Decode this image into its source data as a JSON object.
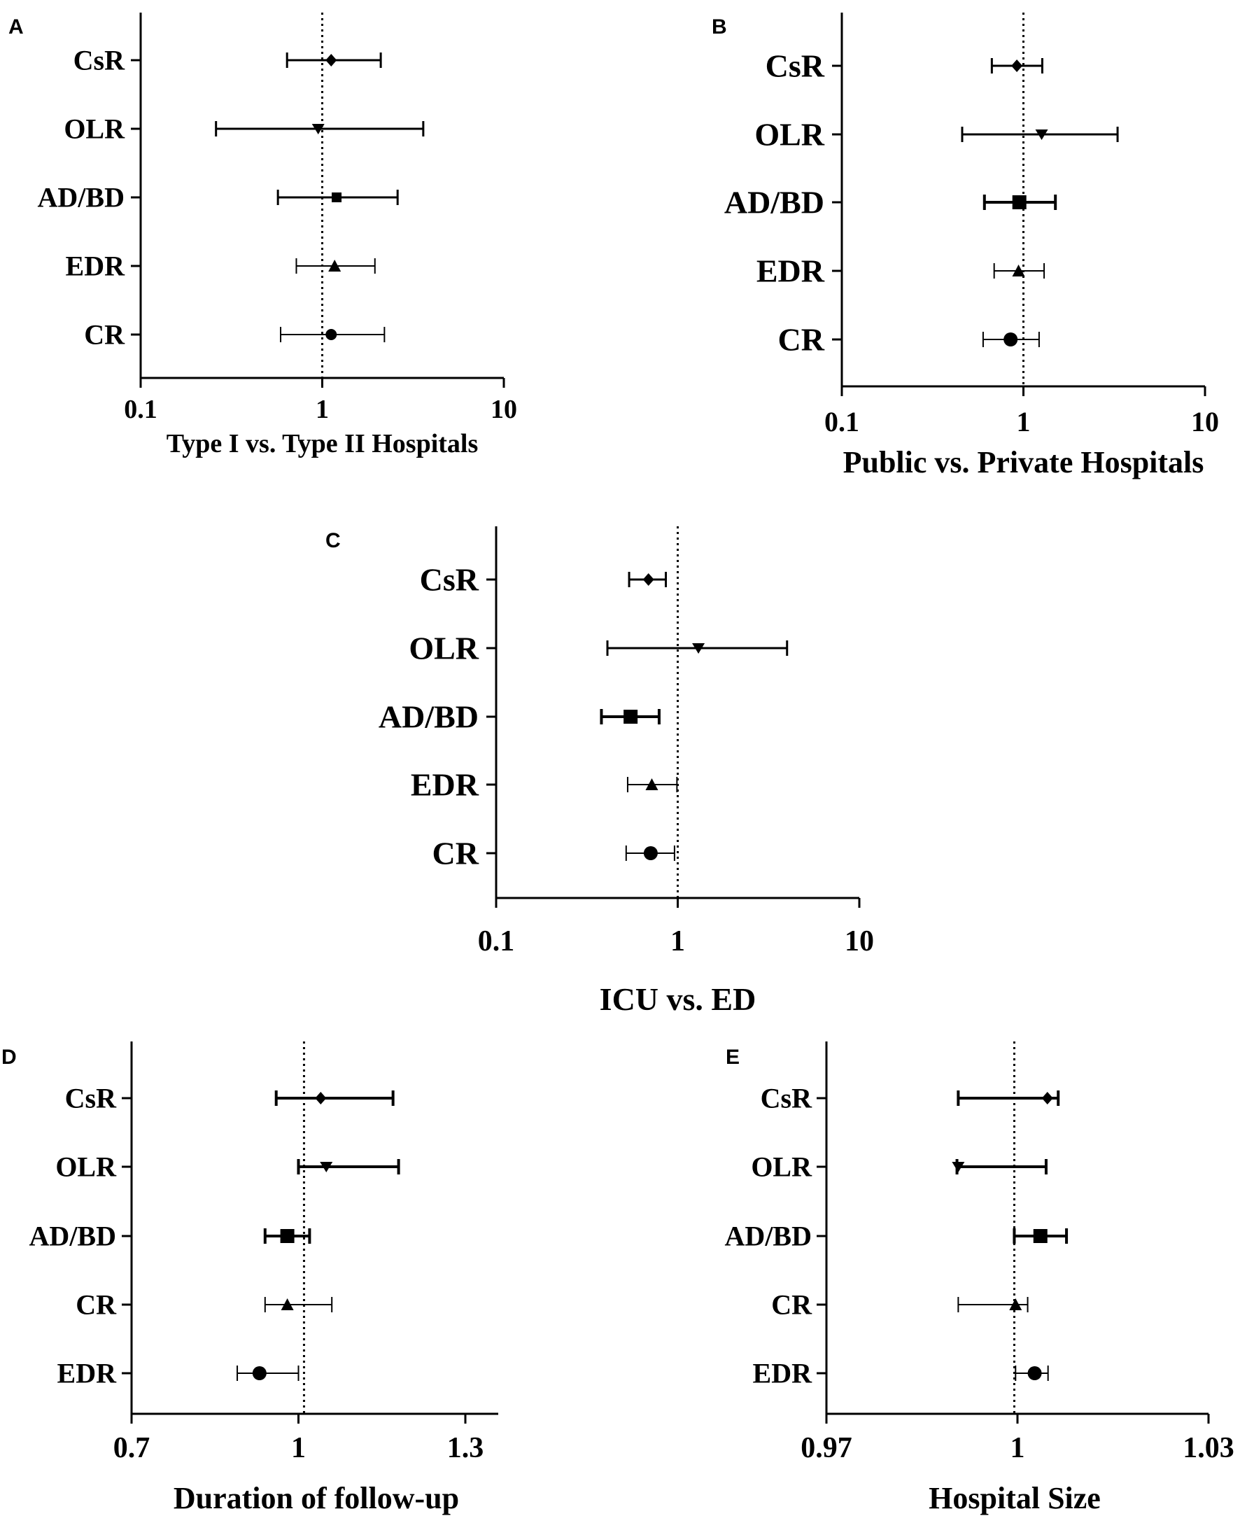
{
  "chart_data": [
    {
      "type": "forest",
      "panel_label": "A",
      "xlabel": "Type I vs. Type II Hospitals",
      "xscale": "log",
      "xlim": [
        0.1,
        10
      ],
      "ref_line": 1,
      "x_ticks": [
        "0.1",
        "1",
        "10"
      ],
      "categories": [
        "CsR",
        "OLR",
        "AD/BD",
        "EDR",
        "CR"
      ],
      "markers": [
        "diamond",
        "triangle-down",
        "square",
        "triangle-up",
        "circle"
      ],
      "estimates": [
        1.12,
        0.95,
        1.2,
        1.17,
        1.12
      ],
      "ci_low": [
        0.64,
        0.26,
        0.57,
        0.72,
        0.59
      ],
      "ci_high": [
        2.1,
        3.6,
        2.6,
        1.95,
        2.2
      ],
      "ci_weights": [
        3,
        3,
        3,
        2,
        2
      ]
    },
    {
      "type": "forest",
      "panel_label": "B",
      "xlabel": "Public vs. Private Hospitals",
      "xscale": "log",
      "xlim": [
        0.1,
        10
      ],
      "ref_line": 1,
      "x_ticks": [
        "0.1",
        "1",
        "10"
      ],
      "categories": [
        "CsR",
        "OLR",
        "AD/BD",
        "EDR",
        "CR"
      ],
      "markers": [
        "diamond",
        "triangle-down",
        "square",
        "triangle-up",
        "circle"
      ],
      "estimates": [
        0.92,
        1.26,
        0.95,
        0.94,
        0.85
      ],
      "ci_low": [
        0.67,
        0.46,
        0.61,
        0.69,
        0.6
      ],
      "ci_high": [
        1.27,
        3.3,
        1.5,
        1.3,
        1.22
      ],
      "ci_weights": [
        3,
        3,
        4,
        2,
        2
      ]
    },
    {
      "type": "forest",
      "panel_label": "C",
      "xlabel": "ICU vs. ED",
      "xscale": "log",
      "xlim": [
        0.1,
        10
      ],
      "ref_line": 1,
      "x_ticks": [
        "0.1",
        "1",
        "10"
      ],
      "categories": [
        "CsR",
        "OLR",
        "AD/BD",
        "EDR",
        "CR"
      ],
      "markers": [
        "diamond",
        "triangle-down",
        "square",
        "triangle-up",
        "circle"
      ],
      "estimates": [
        0.69,
        1.3,
        0.55,
        0.72,
        0.71
      ],
      "ci_low": [
        0.54,
        0.41,
        0.38,
        0.53,
        0.52
      ],
      "ci_high": [
        0.86,
        4.0,
        0.79,
        0.99,
        0.96
      ],
      "ci_weights": [
        3,
        3,
        4,
        2,
        2
      ]
    },
    {
      "type": "forest",
      "panel_label": "D",
      "xlabel": "Duration of follow-up",
      "xscale": "linear",
      "xlim": [
        0.7,
        1.3
      ],
      "ref_line": 1.01,
      "x_ticks": [
        "0.7",
        "1",
        "1.3"
      ],
      "categories": [
        "CsR",
        "OLR",
        "AD/BD",
        "CR",
        "EDR"
      ],
      "markers": [
        "diamond",
        "triangle-down",
        "square",
        "triangle-up",
        "circle"
      ],
      "estimates": [
        1.04,
        1.05,
        0.98,
        0.98,
        0.93
      ],
      "ci_low": [
        0.96,
        1.0,
        0.94,
        0.94,
        0.89
      ],
      "ci_high": [
        1.17,
        1.18,
        1.02,
        1.06,
        1.0
      ],
      "ci_weights": [
        4,
        4,
        4,
        2,
        2
      ]
    },
    {
      "type": "forest",
      "panel_label": "E",
      "xlabel": "Hospital Size",
      "xscale": "linear",
      "xlim": [
        0.97,
        1.03
      ],
      "ref_line": 0.9995,
      "x_ticks": [
        "0.97",
        "1",
        "1.03"
      ],
      "categories": [
        "CsR",
        "OLR",
        "AD/BD",
        "CR",
        "EDR"
      ],
      "markers": [
        "diamond",
        "triangle-down",
        "square",
        "triangle-up",
        "circle"
      ],
      "estimates": [
        1.0047,
        0.9907,
        1.0036,
        0.9997,
        1.0027
      ],
      "ci_low": [
        0.9907,
        0.9905,
        0.9995,
        0.9907,
        0.9997
      ],
      "ci_high": [
        1.0064,
        1.0045,
        1.0077,
        1.0016,
        1.0048
      ],
      "ci_weights": [
        4,
        4,
        4,
        2,
        2
      ]
    }
  ]
}
